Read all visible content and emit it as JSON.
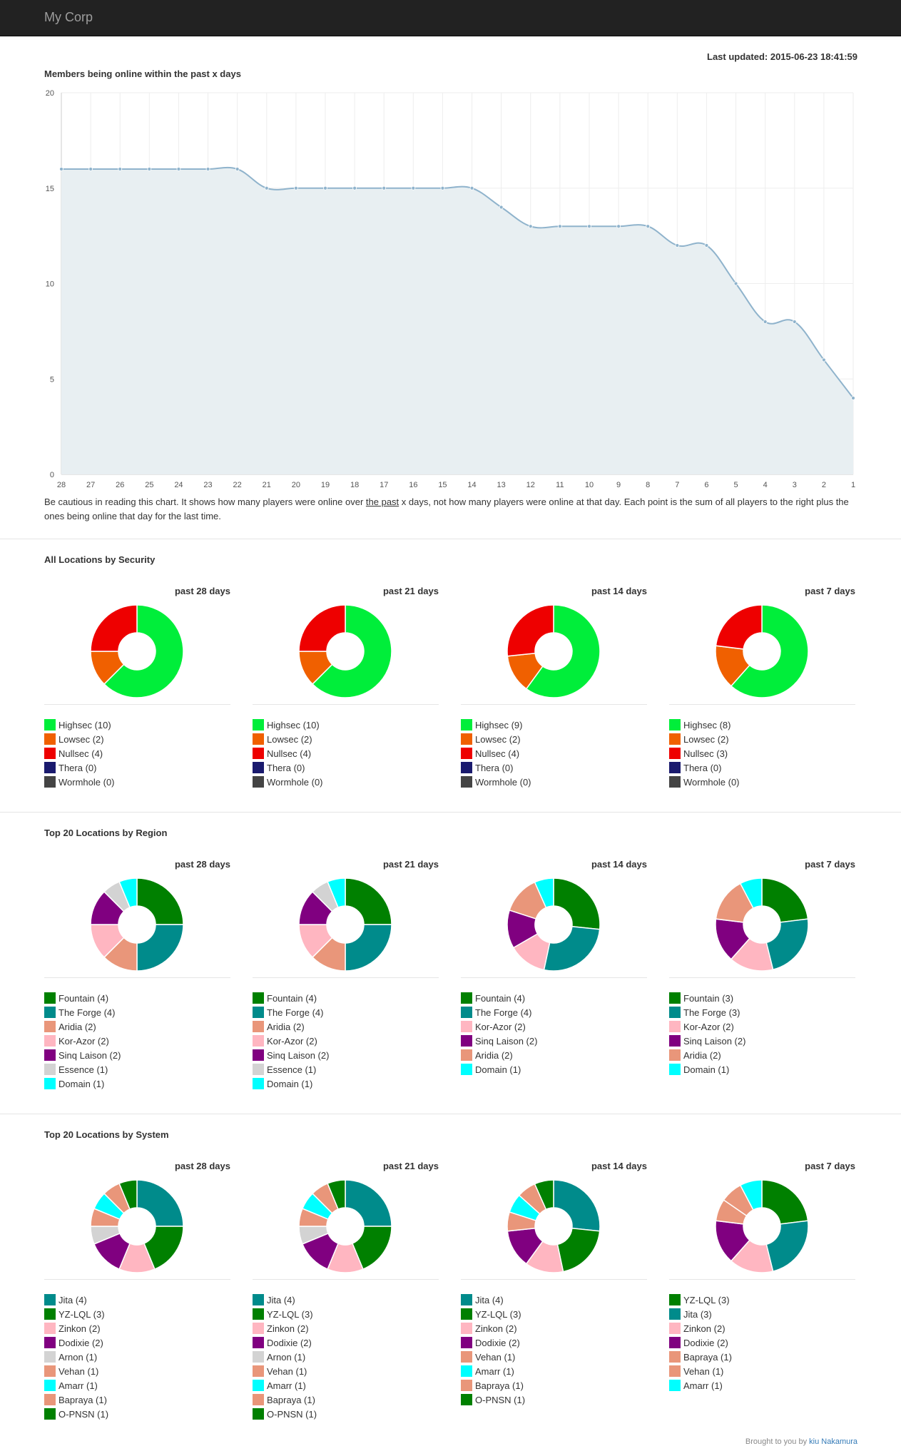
{
  "navbar": {
    "brand": "My Corp"
  },
  "last_updated": "Last updated: 2015-06-23 18:41:59",
  "online_chart": {
    "title": "Members being online within the past x days",
    "note_before": "Be cautious in reading this chart. It shows how many players were online over ",
    "note_underlined": "the past",
    "note_after": " x days, not how many players were online at that day. Each point is the sum of all players to the right plus the ones being online that day for the last time."
  },
  "chart_data": {
    "type": "area",
    "title": "Members being online within the past x days",
    "x": [
      "28",
      "27",
      "26",
      "25",
      "24",
      "23",
      "22",
      "21",
      "20",
      "19",
      "18",
      "17",
      "16",
      "15",
      "14",
      "13",
      "12",
      "11",
      "10",
      "9",
      "8",
      "7",
      "6",
      "5",
      "4",
      "3",
      "2",
      "1"
    ],
    "y": [
      16,
      16,
      16,
      16,
      16,
      16,
      16,
      15,
      15,
      15,
      15,
      15,
      15,
      15,
      15,
      14,
      13,
      13,
      13,
      13,
      13,
      12,
      12,
      10,
      8,
      8,
      6,
      4
    ],
    "ylim": [
      0,
      20
    ],
    "yticks": [
      "0",
      "5",
      "10",
      "15",
      "20"
    ],
    "grid": true,
    "colors": {
      "line": "#8fb3cc",
      "fill": "#e8eff2",
      "grid": "#eeeeee"
    }
  },
  "sections": [
    {
      "title": "All Locations by Security",
      "panels": [
        {
          "title": "past 28 days",
          "items": [
            {
              "label": "Highsec (10)",
              "value": 10,
              "color": "#00ee3a"
            },
            {
              "label": "Lowsec (2)",
              "value": 2,
              "color": "#f06000"
            },
            {
              "label": "Nullsec (4)",
              "value": 4,
              "color": "#ee0000"
            },
            {
              "label": "Thera (0)",
              "value": 0,
              "color": "#1a1a6e"
            },
            {
              "label": "Wormhole (0)",
              "value": 0,
              "color": "#444444"
            }
          ]
        },
        {
          "title": "past 21 days",
          "items": [
            {
              "label": "Highsec (10)",
              "value": 10,
              "color": "#00ee3a"
            },
            {
              "label": "Lowsec (2)",
              "value": 2,
              "color": "#f06000"
            },
            {
              "label": "Nullsec (4)",
              "value": 4,
              "color": "#ee0000"
            },
            {
              "label": "Thera (0)",
              "value": 0,
              "color": "#1a1a6e"
            },
            {
              "label": "Wormhole (0)",
              "value": 0,
              "color": "#444444"
            }
          ]
        },
        {
          "title": "past 14 days",
          "items": [
            {
              "label": "Highsec (9)",
              "value": 9,
              "color": "#00ee3a"
            },
            {
              "label": "Lowsec (2)",
              "value": 2,
              "color": "#f06000"
            },
            {
              "label": "Nullsec (4)",
              "value": 4,
              "color": "#ee0000"
            },
            {
              "label": "Thera (0)",
              "value": 0,
              "color": "#1a1a6e"
            },
            {
              "label": "Wormhole (0)",
              "value": 0,
              "color": "#444444"
            }
          ]
        },
        {
          "title": "past 7 days",
          "items": [
            {
              "label": "Highsec (8)",
              "value": 8,
              "color": "#00ee3a"
            },
            {
              "label": "Lowsec (2)",
              "value": 2,
              "color": "#f06000"
            },
            {
              "label": "Nullsec (3)",
              "value": 3,
              "color": "#ee0000"
            },
            {
              "label": "Thera (0)",
              "value": 0,
              "color": "#1a1a6e"
            },
            {
              "label": "Wormhole (0)",
              "value": 0,
              "color": "#444444"
            }
          ]
        }
      ]
    },
    {
      "title": "Top 20 Locations by Region",
      "panels": [
        {
          "title": "past 28 days",
          "items": [
            {
              "label": "Fountain (4)",
              "value": 4,
              "color": "#008000"
            },
            {
              "label": "The Forge (4)",
              "value": 4,
              "color": "#008b8b"
            },
            {
              "label": "Aridia (2)",
              "value": 2,
              "color": "#e9967a"
            },
            {
              "label": "Kor-Azor (2)",
              "value": 2,
              "color": "#ffb6c1"
            },
            {
              "label": "Sinq Laison (2)",
              "value": 2,
              "color": "#800080"
            },
            {
              "label": "Essence (1)",
              "value": 1,
              "color": "#d3d3d3"
            },
            {
              "label": "Domain (1)",
              "value": 1,
              "color": "#00ffff"
            }
          ]
        },
        {
          "title": "past 21 days",
          "items": [
            {
              "label": "Fountain (4)",
              "value": 4,
              "color": "#008000"
            },
            {
              "label": "The Forge (4)",
              "value": 4,
              "color": "#008b8b"
            },
            {
              "label": "Aridia (2)",
              "value": 2,
              "color": "#e9967a"
            },
            {
              "label": "Kor-Azor (2)",
              "value": 2,
              "color": "#ffb6c1"
            },
            {
              "label": "Sinq Laison (2)",
              "value": 2,
              "color": "#800080"
            },
            {
              "label": "Essence (1)",
              "value": 1,
              "color": "#d3d3d3"
            },
            {
              "label": "Domain (1)",
              "value": 1,
              "color": "#00ffff"
            }
          ]
        },
        {
          "title": "past 14 days",
          "items": [
            {
              "label": "Fountain (4)",
              "value": 4,
              "color": "#008000"
            },
            {
              "label": "The Forge (4)",
              "value": 4,
              "color": "#008b8b"
            },
            {
              "label": "Kor-Azor (2)",
              "value": 2,
              "color": "#ffb6c1"
            },
            {
              "label": "Sinq Laison (2)",
              "value": 2,
              "color": "#800080"
            },
            {
              "label": "Aridia (2)",
              "value": 2,
              "color": "#e9967a"
            },
            {
              "label": "Domain (1)",
              "value": 1,
              "color": "#00ffff"
            }
          ]
        },
        {
          "title": "past 7 days",
          "items": [
            {
              "label": "Fountain (3)",
              "value": 3,
              "color": "#008000"
            },
            {
              "label": "The Forge (3)",
              "value": 3,
              "color": "#008b8b"
            },
            {
              "label": "Kor-Azor (2)",
              "value": 2,
              "color": "#ffb6c1"
            },
            {
              "label": "Sinq Laison (2)",
              "value": 2,
              "color": "#800080"
            },
            {
              "label": "Aridia (2)",
              "value": 2,
              "color": "#e9967a"
            },
            {
              "label": "Domain (1)",
              "value": 1,
              "color": "#00ffff"
            }
          ]
        }
      ]
    },
    {
      "title": "Top 20 Locations by System",
      "panels": [
        {
          "title": "past 28 days",
          "items": [
            {
              "label": "Jita (4)",
              "value": 4,
              "color": "#008b8b"
            },
            {
              "label": "YZ-LQL (3)",
              "value": 3,
              "color": "#008000"
            },
            {
              "label": "Zinkon (2)",
              "value": 2,
              "color": "#ffb6c1"
            },
            {
              "label": "Dodixie (2)",
              "value": 2,
              "color": "#800080"
            },
            {
              "label": "Arnon (1)",
              "value": 1,
              "color": "#d3d3d3"
            },
            {
              "label": "Vehan (1)",
              "value": 1,
              "color": "#e9967a"
            },
            {
              "label": "Amarr (1)",
              "value": 1,
              "color": "#00ffff"
            },
            {
              "label": "Bapraya (1)",
              "value": 1,
              "color": "#e9967a"
            },
            {
              "label": "O-PNSN (1)",
              "value": 1,
              "color": "#008000"
            }
          ]
        },
        {
          "title": "past 21 days",
          "items": [
            {
              "label": "Jita (4)",
              "value": 4,
              "color": "#008b8b"
            },
            {
              "label": "YZ-LQL (3)",
              "value": 3,
              "color": "#008000"
            },
            {
              "label": "Zinkon (2)",
              "value": 2,
              "color": "#ffb6c1"
            },
            {
              "label": "Dodixie (2)",
              "value": 2,
              "color": "#800080"
            },
            {
              "label": "Arnon (1)",
              "value": 1,
              "color": "#d3d3d3"
            },
            {
              "label": "Vehan (1)",
              "value": 1,
              "color": "#e9967a"
            },
            {
              "label": "Amarr (1)",
              "value": 1,
              "color": "#00ffff"
            },
            {
              "label": "Bapraya (1)",
              "value": 1,
              "color": "#e9967a"
            },
            {
              "label": "O-PNSN (1)",
              "value": 1,
              "color": "#008000"
            }
          ]
        },
        {
          "title": "past 14 days",
          "items": [
            {
              "label": "Jita (4)",
              "value": 4,
              "color": "#008b8b"
            },
            {
              "label": "YZ-LQL (3)",
              "value": 3,
              "color": "#008000"
            },
            {
              "label": "Zinkon (2)",
              "value": 2,
              "color": "#ffb6c1"
            },
            {
              "label": "Dodixie (2)",
              "value": 2,
              "color": "#800080"
            },
            {
              "label": "Vehan (1)",
              "value": 1,
              "color": "#e9967a"
            },
            {
              "label": "Amarr (1)",
              "value": 1,
              "color": "#00ffff"
            },
            {
              "label": "Bapraya (1)",
              "value": 1,
              "color": "#e9967a"
            },
            {
              "label": "O-PNSN (1)",
              "value": 1,
              "color": "#008000"
            }
          ]
        },
        {
          "title": "past 7 days",
          "items": [
            {
              "label": "YZ-LQL (3)",
              "value": 3,
              "color": "#008000"
            },
            {
              "label": "Jita (3)",
              "value": 3,
              "color": "#008b8b"
            },
            {
              "label": "Zinkon (2)",
              "value": 2,
              "color": "#ffb6c1"
            },
            {
              "label": "Dodixie (2)",
              "value": 2,
              "color": "#800080"
            },
            {
              "label": "Bapraya (1)",
              "value": 1,
              "color": "#e9967a"
            },
            {
              "label": "Vehan (1)",
              "value": 1,
              "color": "#e9967a"
            },
            {
              "label": "Amarr (1)",
              "value": 1,
              "color": "#00ffff"
            }
          ]
        }
      ]
    }
  ],
  "footer": {
    "text": "Brought to you by ",
    "link": "kiu Nakamura"
  }
}
